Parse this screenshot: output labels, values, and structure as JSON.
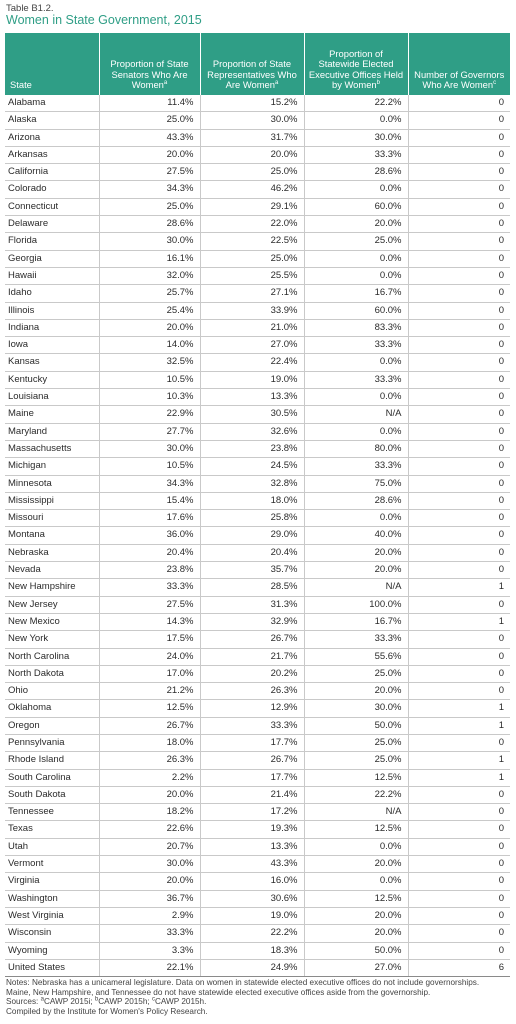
{
  "table_label": "Table B1.2.",
  "title": "Women in State Government, 2015",
  "columns": [
    {
      "text": "State",
      "sup": ""
    },
    {
      "text": "Proportion of State Senators Who Are Women",
      "sup": "a"
    },
    {
      "text": "Proportion of State Representatives Who Are Women",
      "sup": "a"
    },
    {
      "text": "Proportion of Statewide Elected Executive Offices Held by Women",
      "sup": "b"
    },
    {
      "text": "Number of Governors Who Are Women",
      "sup": "c"
    }
  ],
  "rows": [
    [
      "Alabama",
      "11.4%",
      "15.2%",
      "22.2%",
      "0"
    ],
    [
      "Alaska",
      "25.0%",
      "30.0%",
      "0.0%",
      "0"
    ],
    [
      "Arizona",
      "43.3%",
      "31.7%",
      "30.0%",
      "0"
    ],
    [
      "Arkansas",
      "20.0%",
      "20.0%",
      "33.3%",
      "0"
    ],
    [
      "California",
      "27.5%",
      "25.0%",
      "28.6%",
      "0"
    ],
    [
      "Colorado",
      "34.3%",
      "46.2%",
      "0.0%",
      "0"
    ],
    [
      "Connecticut",
      "25.0%",
      "29.1%",
      "60.0%",
      "0"
    ],
    [
      "Delaware",
      "28.6%",
      "22.0%",
      "20.0%",
      "0"
    ],
    [
      "Florida",
      "30.0%",
      "22.5%",
      "25.0%",
      "0"
    ],
    [
      "Georgia",
      "16.1%",
      "25.0%",
      "0.0%",
      "0"
    ],
    [
      "Hawaii",
      "32.0%",
      "25.5%",
      "0.0%",
      "0"
    ],
    [
      "Idaho",
      "25.7%",
      "27.1%",
      "16.7%",
      "0"
    ],
    [
      "Illinois",
      "25.4%",
      "33.9%",
      "60.0%",
      "0"
    ],
    [
      "Indiana",
      "20.0%",
      "21.0%",
      "83.3%",
      "0"
    ],
    [
      "Iowa",
      "14.0%",
      "27.0%",
      "33.3%",
      "0"
    ],
    [
      "Kansas",
      "32.5%",
      "22.4%",
      "0.0%",
      "0"
    ],
    [
      "Kentucky",
      "10.5%",
      "19.0%",
      "33.3%",
      "0"
    ],
    [
      "Louisiana",
      "10.3%",
      "13.3%",
      "0.0%",
      "0"
    ],
    [
      "Maine",
      "22.9%",
      "30.5%",
      "N/A",
      "0"
    ],
    [
      "Maryland",
      "27.7%",
      "32.6%",
      "0.0%",
      "0"
    ],
    [
      "Massachusetts",
      "30.0%",
      "23.8%",
      "80.0%",
      "0"
    ],
    [
      "Michigan",
      "10.5%",
      "24.5%",
      "33.3%",
      "0"
    ],
    [
      "Minnesota",
      "34.3%",
      "32.8%",
      "75.0%",
      "0"
    ],
    [
      "Mississippi",
      "15.4%",
      "18.0%",
      "28.6%",
      "0"
    ],
    [
      "Missouri",
      "17.6%",
      "25.8%",
      "0.0%",
      "0"
    ],
    [
      "Montana",
      "36.0%",
      "29.0%",
      "40.0%",
      "0"
    ],
    [
      "Nebraska",
      "20.4%",
      "20.4%",
      "20.0%",
      "0"
    ],
    [
      "Nevada",
      "23.8%",
      "35.7%",
      "20.0%",
      "0"
    ],
    [
      "New Hampshire",
      "33.3%",
      "28.5%",
      "N/A",
      "1"
    ],
    [
      "New Jersey",
      "27.5%",
      "31.3%",
      "100.0%",
      "0"
    ],
    [
      "New Mexico",
      "14.3%",
      "32.9%",
      "16.7%",
      "1"
    ],
    [
      "New York",
      "17.5%",
      "26.7%",
      "33.3%",
      "0"
    ],
    [
      "North Carolina",
      "24.0%",
      "21.7%",
      "55.6%",
      "0"
    ],
    [
      "North Dakota",
      "17.0%",
      "20.2%",
      "25.0%",
      "0"
    ],
    [
      "Ohio",
      "21.2%",
      "26.3%",
      "20.0%",
      "0"
    ],
    [
      "Oklahoma",
      "12.5%",
      "12.9%",
      "30.0%",
      "1"
    ],
    [
      "Oregon",
      "26.7%",
      "33.3%",
      "50.0%",
      "1"
    ],
    [
      "Pennsylvania",
      "18.0%",
      "17.7%",
      "25.0%",
      "0"
    ],
    [
      "Rhode Island",
      "26.3%",
      "26.7%",
      "25.0%",
      "1"
    ],
    [
      "South Carolina",
      "2.2%",
      "17.7%",
      "12.5%",
      "1"
    ],
    [
      "South Dakota",
      "20.0%",
      "21.4%",
      "22.2%",
      "0"
    ],
    [
      "Tennessee",
      "18.2%",
      "17.2%",
      "N/A",
      "0"
    ],
    [
      "Texas",
      "22.6%",
      "19.3%",
      "12.5%",
      "0"
    ],
    [
      "Utah",
      "20.7%",
      "13.3%",
      "0.0%",
      "0"
    ],
    [
      "Vermont",
      "30.0%",
      "43.3%",
      "20.0%",
      "0"
    ],
    [
      "Virginia",
      "20.0%",
      "16.0%",
      "0.0%",
      "0"
    ],
    [
      "Washington",
      "36.7%",
      "30.6%",
      "12.5%",
      "0"
    ],
    [
      "West Virginia",
      "2.9%",
      "19.0%",
      "20.0%",
      "0"
    ],
    [
      "Wisconsin",
      "33.3%",
      "22.2%",
      "20.0%",
      "0"
    ],
    [
      "Wyoming",
      "3.3%",
      "18.3%",
      "50.0%",
      "0"
    ],
    [
      "United States",
      "22.1%",
      "24.9%",
      "27.0%",
      "6"
    ]
  ],
  "notes": {
    "line1": "Notes: Nebraska has a unicameral legislature. Data on women in statewide elected executive offices do not include governorships.",
    "line2": "Maine, New Hampshire, and Tennessee do not have statewide elected executive offices aside from the governorship.",
    "sources_prefix": "Sources: ",
    "src_a": "a",
    "src_a_text": "CAWP 2015i; ",
    "src_b": "b",
    "src_b_text": "CAWP 2015h; ",
    "src_c": "c",
    "src_c_text": "CAWP 2015h.",
    "compiled": "Compiled by the Institute for Women's Policy Research."
  },
  "colors": {
    "header_bg": "#2f9e86",
    "title": "#2f9e86"
  }
}
